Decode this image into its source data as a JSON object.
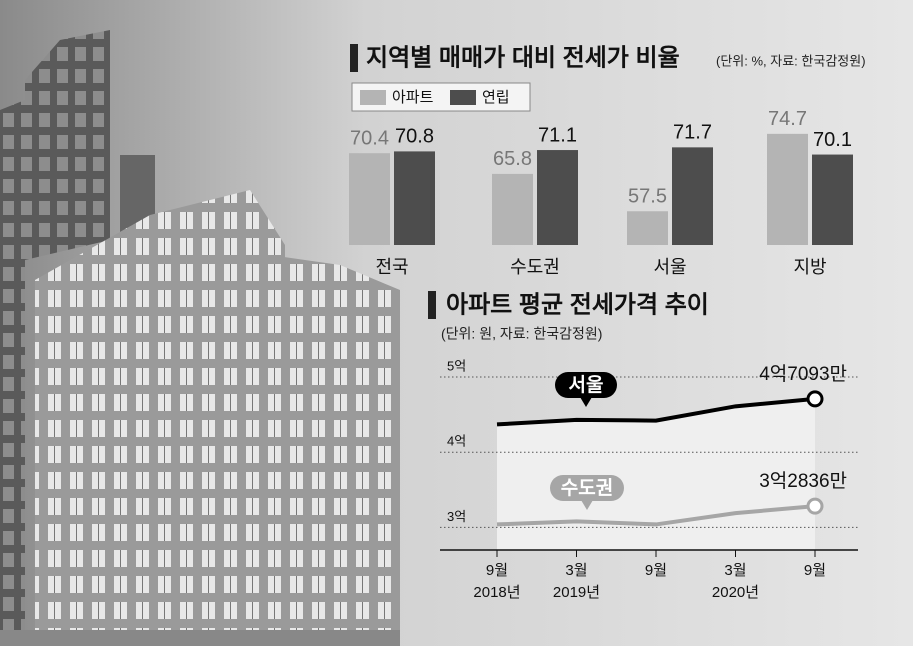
{
  "chart_data": [
    {
      "type": "bar",
      "title": "지역별 매매가 대비 전세가 비율",
      "subtitle": "(단위: %, 자료: 한국감정원)",
      "categories": [
        "전국",
        "수도권",
        "서울",
        "지방"
      ],
      "series": [
        {
          "name": "아파트",
          "color": "#b4b4b4",
          "values": [
            70.4,
            65.8,
            57.5,
            74.7
          ]
        },
        {
          "name": "연립",
          "color": "#4d4d4d",
          "values": [
            70.8,
            71.1,
            71.7,
            70.1
          ]
        }
      ],
      "ylim": [
        50,
        76
      ]
    },
    {
      "type": "line",
      "title": "아파트 평균 전세가격 추이",
      "subtitle": "(단위: 원, 자료: 한국감정원)",
      "categories": [
        [
          "9월",
          "2018년"
        ],
        [
          "3월",
          "2019년"
        ],
        [
          "9월",
          null
        ],
        [
          "3월",
          "2020년"
        ],
        [
          "9월",
          null
        ]
      ],
      "series": [
        {
          "name": "서울",
          "color": "#000000",
          "values": [
            4.37,
            4.43,
            4.42,
            4.61,
            4.7093
          ],
          "value_labels": [
            null,
            null,
            null,
            null,
            "4억7093만"
          ]
        },
        {
          "name": "수도권",
          "color": "#a6a6a6",
          "values": [
            3.04,
            3.08,
            3.04,
            3.19,
            3.2836
          ],
          "value_labels": [
            null,
            null,
            null,
            null,
            "3억2836만"
          ]
        }
      ],
      "ylim": [
        2.7,
        5
      ],
      "yticks": [
        {
          "value": 3,
          "label": "3억"
        },
        {
          "value": 4,
          "label": "4억"
        },
        {
          "value": 5,
          "label": "5억"
        }
      ],
      "grid": true
    }
  ]
}
